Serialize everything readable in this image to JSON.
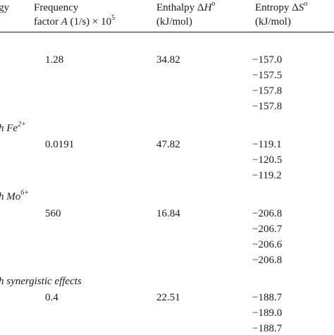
{
  "header": {
    "col1": "gy",
    "col2_line1": "Frequency",
    "col2_line2_prefix": "factor ",
    "col2_line2_var": "A",
    "col2_line2_unit": " (1/s) × 10",
    "col2_line2_exp": "5",
    "col3_line1_prefix": "Enthalpy Δ",
    "col3_line1_var": "H",
    "col3_line1_sup": "o",
    "col3_line2": "(kJ/mol)",
    "col4_line1_prefix": "Entropy Δ",
    "col4_line1_var": "S",
    "col4_line1_sup": "o",
    "col4_line2": "(kJ/mol)"
  },
  "groups": [
    {
      "label_prefix": "",
      "label_main": "",
      "label_sup": "",
      "frequency": "1.28",
      "enthalpy": "34.82",
      "entropy": [
        "−157.0",
        "−157.5",
        "−157.8",
        "−157.8"
      ]
    },
    {
      "label_prefix": "h ",
      "label_main": "Fe",
      "label_sup": "2+",
      "frequency": "0.0191",
      "enthalpy": "47.82",
      "entropy": [
        "−119.1",
        "−120.5",
        "−119.2"
      ]
    },
    {
      "label_prefix": "h ",
      "label_main": "Mo",
      "label_sup": "6+",
      "frequency": "560",
      "enthalpy": "16.84",
      "entropy": [
        "−206.8",
        "−206.7",
        "−206.6",
        "−206.8"
      ]
    },
    {
      "label_prefix": "h ",
      "label_main": "synergistic effects",
      "label_sup": "",
      "frequency": "0.4",
      "enthalpy": "22.51",
      "entropy": [
        "−188.7",
        "−189.0",
        "−188.7"
      ]
    }
  ]
}
